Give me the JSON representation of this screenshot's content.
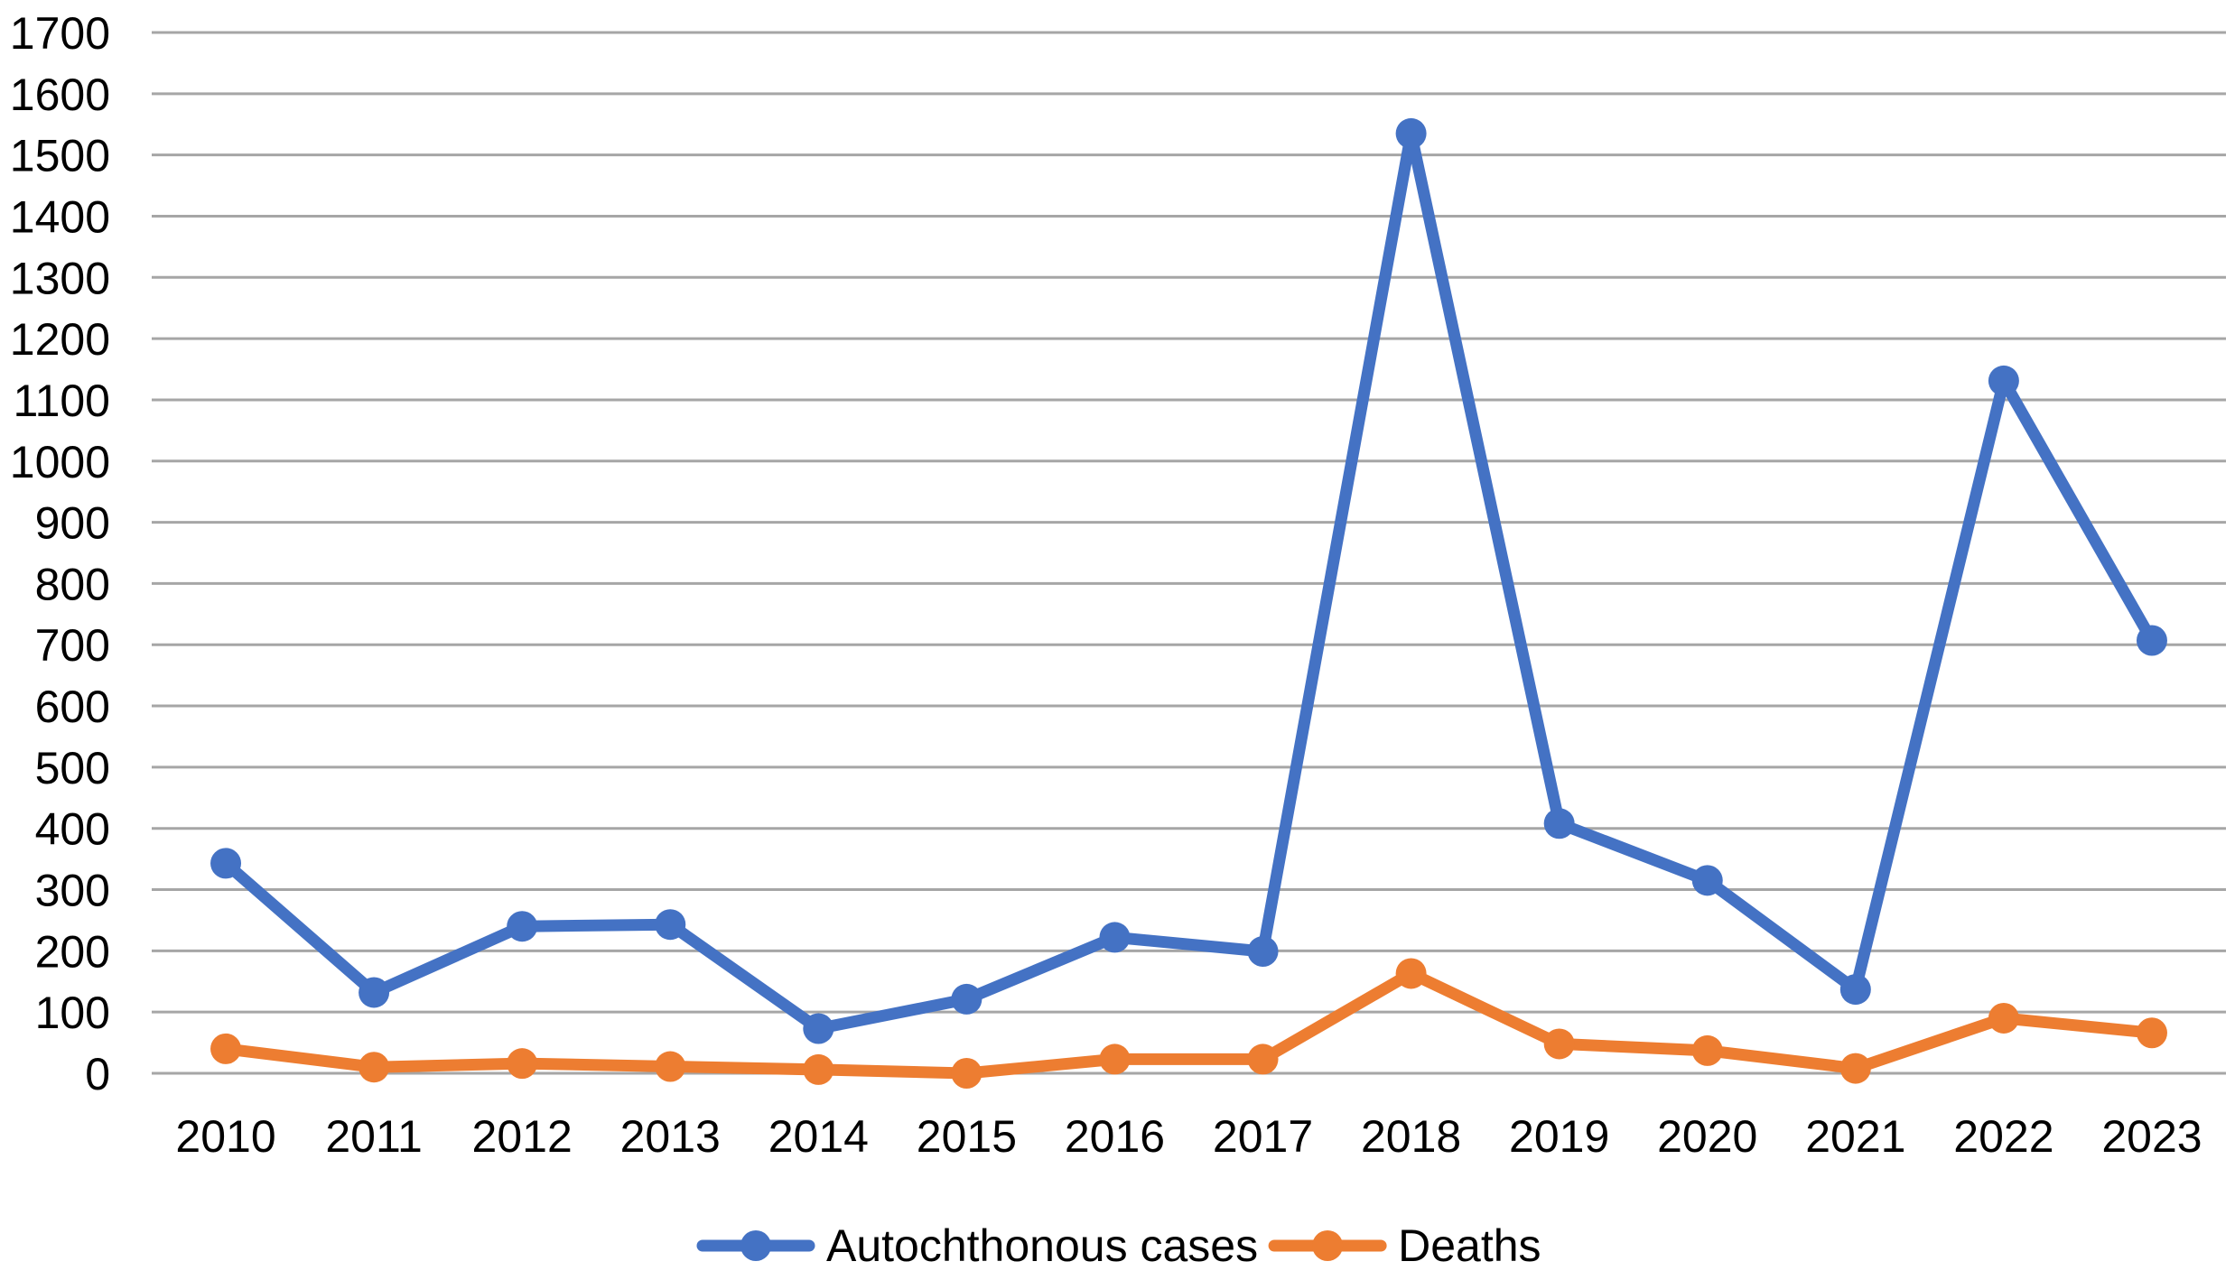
{
  "chart_data": {
    "type": "line",
    "title": "",
    "xlabel": "",
    "ylabel": "",
    "categories": [
      "2010",
      "2011",
      "2012",
      "2013",
      "2014",
      "2015",
      "2016",
      "2017",
      "2018",
      "2019",
      "2020",
      "2021",
      "2022",
      "2023"
    ],
    "ylim": [
      0,
      1700
    ],
    "yticks": [
      0,
      100,
      200,
      300,
      400,
      500,
      600,
      700,
      800,
      900,
      1000,
      1100,
      1200,
      1300,
      1400,
      1500,
      1600,
      1700
    ],
    "grid": true,
    "legend_position": "bottom",
    "series": [
      {
        "name": "Autochthonous cases",
        "color": "#4472c4",
        "values": [
          343,
          132,
          240,
          243,
          73,
          121,
          222,
          199,
          1535,
          408,
          315,
          137,
          1131,
          707
        ]
      },
      {
        "name": "Deaths",
        "color": "#ed7d31",
        "values": [
          40,
          10,
          16,
          11,
          6,
          0,
          23,
          23,
          163,
          48,
          37,
          8,
          90,
          66
        ]
      }
    ]
  }
}
